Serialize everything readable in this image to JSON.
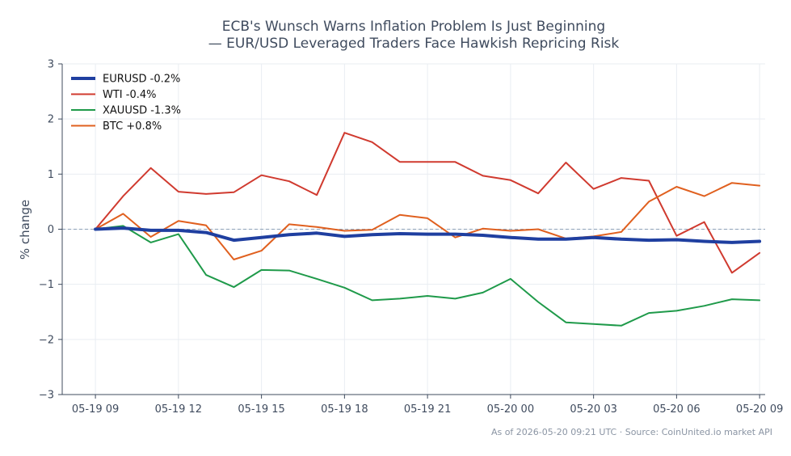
{
  "chart_data": {
    "type": "line",
    "title_lines": [
      "ECB's Wunsch Warns Inflation Problem Is Just Beginning",
      "— EUR/USD Leveraged Traders Face Hawkish Repricing Risk"
    ],
    "xlabel": "",
    "ylabel": "% change",
    "ylim": [
      -3,
      3
    ],
    "yticks": [
      3,
      2,
      1,
      0,
      -1,
      -2,
      -3
    ],
    "ytick_labels": [
      "3",
      "2",
      "1",
      "0",
      "−1",
      "−2",
      "−3"
    ],
    "x_range": [
      -1.2,
      24.2
    ],
    "xticks": [
      0,
      3,
      6,
      9,
      12,
      15,
      18,
      21,
      24
    ],
    "xtick_labels": [
      "05-19 09",
      "05-19 12",
      "05-19 15",
      "05-19 18",
      "05-19 21",
      "05-20 00",
      "05-20 03",
      "05-20 06",
      "05-20 09"
    ],
    "x": [
      0,
      1,
      2,
      3,
      4,
      5,
      6,
      7,
      8,
      9,
      10,
      11,
      12,
      13,
      14,
      15,
      16,
      17,
      18,
      19,
      20,
      21,
      22,
      23,
      24
    ],
    "grid": true,
    "zero_line": true,
    "legend_position": "top-left",
    "series": [
      {
        "name": "EURUSD -0.2%",
        "color": "#1f3fa0",
        "width": 4,
        "values": [
          0,
          0.02,
          -0.02,
          -0.02,
          -0.06,
          -0.2,
          -0.15,
          -0.1,
          -0.07,
          -0.13,
          -0.1,
          -0.08,
          -0.09,
          -0.09,
          -0.11,
          -0.15,
          -0.18,
          -0.18,
          -0.15,
          -0.18,
          -0.2,
          -0.19,
          -0.22,
          -0.24,
          -0.22
        ]
      },
      {
        "name": "WTI -0.4%",
        "color": "#d03a2f",
        "width": 2,
        "values": [
          0,
          0.6,
          1.11,
          0.68,
          0.64,
          0.67,
          0.98,
          0.87,
          0.62,
          1.75,
          1.58,
          1.22,
          1.22,
          1.22,
          0.97,
          0.89,
          0.65,
          1.21,
          0.73,
          0.93,
          0.88,
          -0.12,
          0.13,
          -0.79,
          -0.43
        ]
      },
      {
        "name": "XAUUSD -1.3%",
        "color": "#1f9a4a",
        "width": 2,
        "values": [
          0,
          0.06,
          -0.24,
          -0.09,
          -0.83,
          -1.05,
          -0.74,
          -0.75,
          -0.9,
          -1.06,
          -1.29,
          -1.26,
          -1.21,
          -1.26,
          -1.15,
          -0.9,
          -1.32,
          -1.69,
          -1.72,
          -1.75,
          -1.52,
          -1.48,
          -1.39,
          -1.27,
          -1.29
        ]
      },
      {
        "name": "BTC +0.8%",
        "color": "#e0601f",
        "width": 2,
        "values": [
          0,
          0.28,
          -0.14,
          0.15,
          0.07,
          -0.55,
          -0.39,
          0.09,
          0.04,
          -0.03,
          -0.01,
          0.26,
          0.2,
          -0.15,
          0.01,
          -0.03,
          0.0,
          -0.17,
          -0.13,
          -0.05,
          0.5,
          0.77,
          0.6,
          0.84,
          0.79
        ]
      }
    ]
  },
  "footer_text": "As of 2026-05-20 09:21 UTC · Source: CoinUnited.io market API"
}
